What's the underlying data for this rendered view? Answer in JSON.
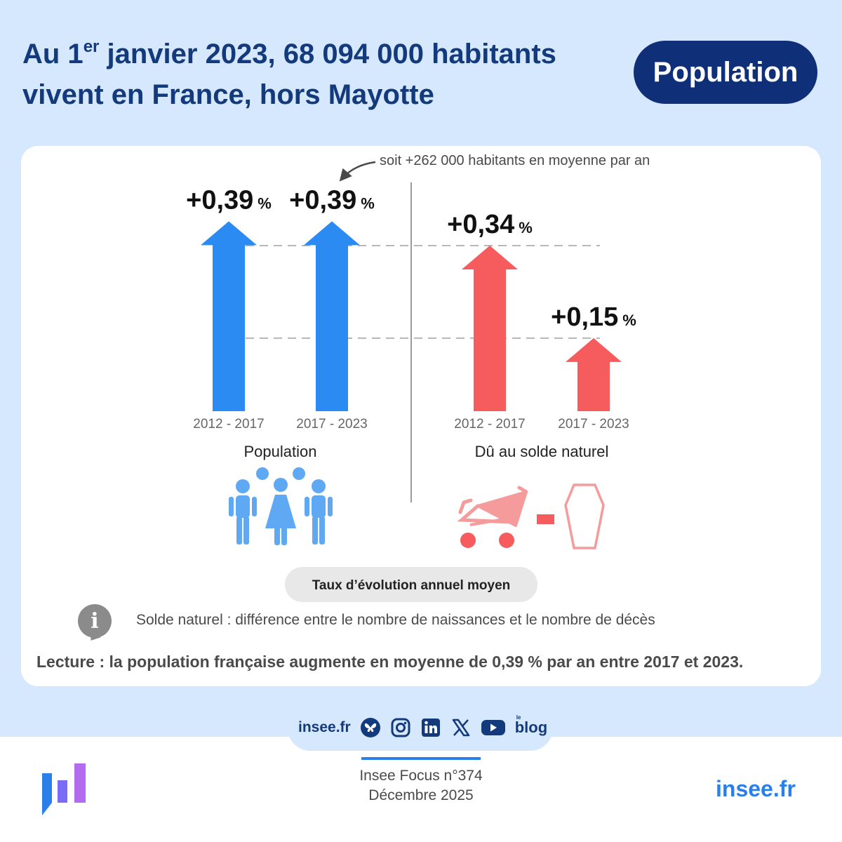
{
  "header": {
    "title_part1": "Au 1",
    "title_sup": "er",
    "title_part2": " janvier 2023, 68 094 000 habitants vivent en France, hors Mayotte",
    "badge": "Population"
  },
  "chart_data": {
    "type": "bar",
    "style": "arrows",
    "annotation": "soit +262 000 habitants en moyenne par an",
    "legend": "Taux d’évolution annuel moyen",
    "unit": "%",
    "groups": [
      {
        "name": "Population",
        "color": "#2b8bf2",
        "categories": [
          "2012 - 2017",
          "2017 - 2023"
        ],
        "values": [
          0.39,
          0.39
        ],
        "labels": [
          "+0,39",
          "+0,39"
        ]
      },
      {
        "name": "Dû au solde naturel",
        "color": "#f65b5d",
        "categories": [
          "2012 - 2017",
          "2017 - 2023"
        ],
        "values": [
          0.34,
          0.15
        ],
        "labels": [
          "+0,34",
          "+0,15"
        ]
      }
    ],
    "reference_lines": [
      0.34,
      0.15
    ],
    "ylim": [
      0,
      0.45
    ]
  },
  "notes": {
    "definition": "Solde naturel : différence entre le nombre de naissances et le nombre de décès",
    "lecture": "Lecture : la population française augmente en moyenne de 0,39 % par an entre 2017 et 2023."
  },
  "footer": {
    "social_link": "insee.fr",
    "social_icons": [
      "bluesky-icon",
      "instagram-icon",
      "linkedin-icon",
      "x-icon",
      "youtube-icon"
    ],
    "blog_small": "le",
    "blog": "blog",
    "publication": "Insee Focus n°374",
    "date": "Décembre 2025",
    "site": "insee.fr"
  },
  "colors": {
    "navy": "#133a7c",
    "blue": "#2b8bf2",
    "red": "#f65b5d",
    "background": "#d6e8fd",
    "link": "#2b7fe8"
  }
}
